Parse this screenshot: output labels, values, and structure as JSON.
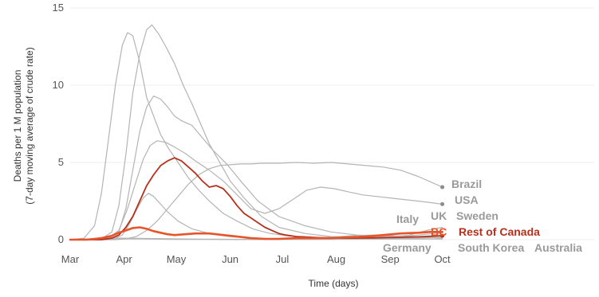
{
  "chart_data": {
    "type": "line",
    "title": "",
    "xlabel": "Time (days)",
    "ylabel_lines": [
      "Deaths per 1 M population",
      "(7-day moving average of crude rate)"
    ],
    "x_unit": "days since Mar 1",
    "xlim": [
      0,
      222
    ],
    "ylim": [
      0,
      15
    ],
    "x_ticks": [
      {
        "x": 0,
        "label": "Mar"
      },
      {
        "x": 31,
        "label": "Apr"
      },
      {
        "x": 61,
        "label": "May"
      },
      {
        "x": 92,
        "label": "Jun"
      },
      {
        "x": 122,
        "label": "Jul"
      },
      {
        "x": 153,
        "label": "Aug"
      },
      {
        "x": 184,
        "label": "Sep"
      },
      {
        "x": 214,
        "label": "Oct"
      }
    ],
    "y_ticks": [
      0,
      5,
      10,
      15
    ],
    "grid": "horizontal",
    "colors": {
      "grey_series": "#b4b4b4",
      "grey_label": "#9a9a9a",
      "bc": "#e8542a",
      "rest_of_canada": "#b5311c",
      "grid": "#eeeeee"
    },
    "series": [
      {
        "name": "Italy",
        "group": "grey",
        "x": [
          0,
          8,
          14,
          18,
          22,
          26,
          30,
          33,
          36,
          40,
          44,
          48,
          52,
          56,
          62,
          68,
          74,
          80,
          88,
          96,
          105,
          115,
          125,
          140,
          155,
          170,
          185,
          200,
          214
        ],
        "y": [
          0,
          0.1,
          0.9,
          3,
          6.5,
          10,
          12.6,
          13.4,
          13.2,
          11.5,
          9.2,
          8,
          6.8,
          6,
          5,
          4,
          3.2,
          2.5,
          1.7,
          1.2,
          0.7,
          0.4,
          0.25,
          0.15,
          0.1,
          0.1,
          0.15,
          0.2,
          0.3
        ]
      },
      {
        "name": "UK",
        "group": "grey",
        "x": [
          0,
          12,
          18,
          24,
          28,
          32,
          36,
          40,
          44,
          47,
          51,
          55,
          60,
          65,
          70,
          75,
          80,
          86,
          92,
          100,
          110,
          120,
          135,
          150,
          165,
          180,
          195,
          205,
          214
        ],
        "y": [
          0,
          0,
          0.05,
          0.5,
          2.2,
          5.5,
          9.5,
          12,
          13.6,
          13.9,
          13.3,
          12.5,
          11.4,
          10,
          8.8,
          7.5,
          6.2,
          5,
          3.8,
          2.7,
          1.5,
          0.8,
          0.4,
          0.2,
          0.15,
          0.15,
          0.3,
          0.6,
          0.8
        ]
      },
      {
        "name": "Sweden",
        "group": "grey",
        "x": [
          0,
          15,
          22,
          28,
          32,
          36,
          40,
          44,
          48,
          52,
          56,
          60,
          64,
          70,
          76,
          82,
          90,
          98,
          108,
          120,
          135,
          150,
          165,
          180,
          195,
          205,
          214
        ],
        "y": [
          0,
          0,
          0.05,
          0.5,
          2,
          4.5,
          7,
          8.6,
          9.3,
          9.1,
          8.6,
          8,
          7.7,
          7.4,
          6.6,
          5.8,
          4.9,
          3.8,
          2.5,
          1.5,
          0.9,
          0.5,
          0.3,
          0.2,
          0.25,
          0.35,
          0.45
        ]
      },
      {
        "name": "Germany",
        "group": "grey",
        "x": [
          0,
          18,
          25,
          30,
          34,
          38,
          42,
          45,
          48,
          52,
          56,
          62,
          70,
          80,
          92,
          105,
          120,
          140,
          160,
          180,
          200,
          214
        ],
        "y": [
          0,
          0,
          0.05,
          0.3,
          1,
          1.9,
          2.7,
          3,
          2.8,
          2.3,
          1.8,
          1.2,
          0.7,
          0.4,
          0.2,
          0.1,
          0.05,
          0.05,
          0.05,
          0.05,
          0.1,
          0.15
        ]
      },
      {
        "name": "Brazil",
        "group": "grey",
        "x": [
          0,
          25,
          32,
          38,
          44,
          50,
          56,
          62,
          68,
          74,
          80,
          86,
          92,
          98,
          104,
          110,
          120,
          130,
          140,
          150,
          160,
          170,
          180,
          190,
          200,
          208,
          214
        ],
        "y": [
          0,
          0,
          0.05,
          0.2,
          0.6,
          1.2,
          2,
          2.8,
          3.6,
          4.2,
          4.6,
          4.8,
          4.85,
          4.9,
          4.9,
          4.95,
          4.95,
          5,
          4.95,
          5,
          4.9,
          4.8,
          4.7,
          4.5,
          4.1,
          3.7,
          3.4
        ]
      },
      {
        "name": "USA",
        "group": "grey",
        "x": [
          0,
          15,
          22,
          28,
          33,
          38,
          42,
          46,
          50,
          55,
          60,
          66,
          72,
          80,
          88,
          96,
          104,
          112,
          120,
          128,
          136,
          144,
          152,
          160,
          168,
          176,
          184,
          192,
          200,
          207,
          214
        ],
        "y": [
          0,
          0,
          0.1,
          0.6,
          2,
          3.8,
          5.2,
          6.1,
          6.4,
          6.3,
          6,
          5.6,
          5.1,
          4.5,
          3.8,
          2.9,
          2,
          1.7,
          2,
          2.6,
          3.2,
          3.4,
          3.3,
          3.1,
          2.9,
          2.8,
          2.7,
          2.6,
          2.5,
          2.4,
          2.3
        ]
      },
      {
        "name": "South Korea",
        "group": "grey",
        "x": [
          0,
          10,
          20,
          30,
          40,
          60,
          80,
          100,
          120,
          140,
          160,
          180,
          200,
          214
        ],
        "y": [
          0,
          0.05,
          0.1,
          0.1,
          0.08,
          0.05,
          0.03,
          0.02,
          0.02,
          0.02,
          0.03,
          0.04,
          0.04,
          0.04
        ]
      },
      {
        "name": "Australia",
        "group": "grey",
        "x": [
          0,
          20,
          30,
          40,
          60,
          90,
          120,
          140,
          155,
          165,
          175,
          185,
          195,
          205,
          214
        ],
        "y": [
          0,
          0,
          0.05,
          0.05,
          0.02,
          0.01,
          0.02,
          0.1,
          0.2,
          0.28,
          0.3,
          0.25,
          0.2,
          0.15,
          0.1
        ]
      },
      {
        "name": "Rest of Canada",
        "group": "highlight",
        "x": [
          0,
          18,
          24,
          28,
          32,
          36,
          40,
          44,
          48,
          52,
          56,
          60,
          64,
          68,
          72,
          76,
          80,
          84,
          88,
          92,
          96,
          100,
          104,
          108,
          112,
          116,
          120,
          124,
          130,
          140,
          150,
          160,
          175,
          190,
          205,
          214
        ],
        "y": [
          0,
          0,
          0.1,
          0.3,
          0.8,
          1.5,
          2.5,
          3.5,
          4.2,
          4.8,
          5.1,
          5.3,
          5.1,
          4.7,
          4.3,
          3.8,
          3.4,
          3.5,
          3.3,
          2.8,
          2.2,
          1.7,
          1.4,
          1.1,
          0.8,
          0.6,
          0.4,
          0.3,
          0.2,
          0.15,
          0.1,
          0.1,
          0.12,
          0.15,
          0.2,
          0.25
        ]
      },
      {
        "name": "BC",
        "group": "highlight",
        "x": [
          0,
          10,
          18,
          24,
          28,
          32,
          36,
          40,
          44,
          48,
          52,
          56,
          60,
          66,
          72,
          80,
          88,
          96,
          104,
          112,
          120,
          130,
          140,
          150,
          160,
          170,
          180,
          190,
          200,
          207,
          214
        ],
        "y": [
          0,
          0,
          0.1,
          0.25,
          0.45,
          0.6,
          0.75,
          0.8,
          0.7,
          0.55,
          0.45,
          0.35,
          0.3,
          0.35,
          0.4,
          0.4,
          0.3,
          0.2,
          0.1,
          0.05,
          0.05,
          0.1,
          0.1,
          0.1,
          0.15,
          0.2,
          0.3,
          0.4,
          0.45,
          0.5,
          0.5
        ]
      }
    ],
    "end_labels": [
      {
        "key": "brazil",
        "text": "Brazil",
        "color": "grey"
      },
      {
        "key": "usa",
        "text": "USA",
        "color": "grey"
      },
      {
        "key": "italy",
        "text": "Italy",
        "color": "grey"
      },
      {
        "key": "uk",
        "text": "UK",
        "color": "grey"
      },
      {
        "key": "sweden",
        "text": "Sweden",
        "color": "grey"
      },
      {
        "key": "bc",
        "text": "BC",
        "color": "bc"
      },
      {
        "key": "rest-of-canada",
        "text": "Rest of Canada",
        "color": "rest_of_canada"
      },
      {
        "key": "germany",
        "text": "Germany",
        "color": "grey"
      },
      {
        "key": "south-korea",
        "text": "South Korea",
        "color": "grey"
      },
      {
        "key": "australia",
        "text": "Australia",
        "color": "grey"
      }
    ]
  }
}
